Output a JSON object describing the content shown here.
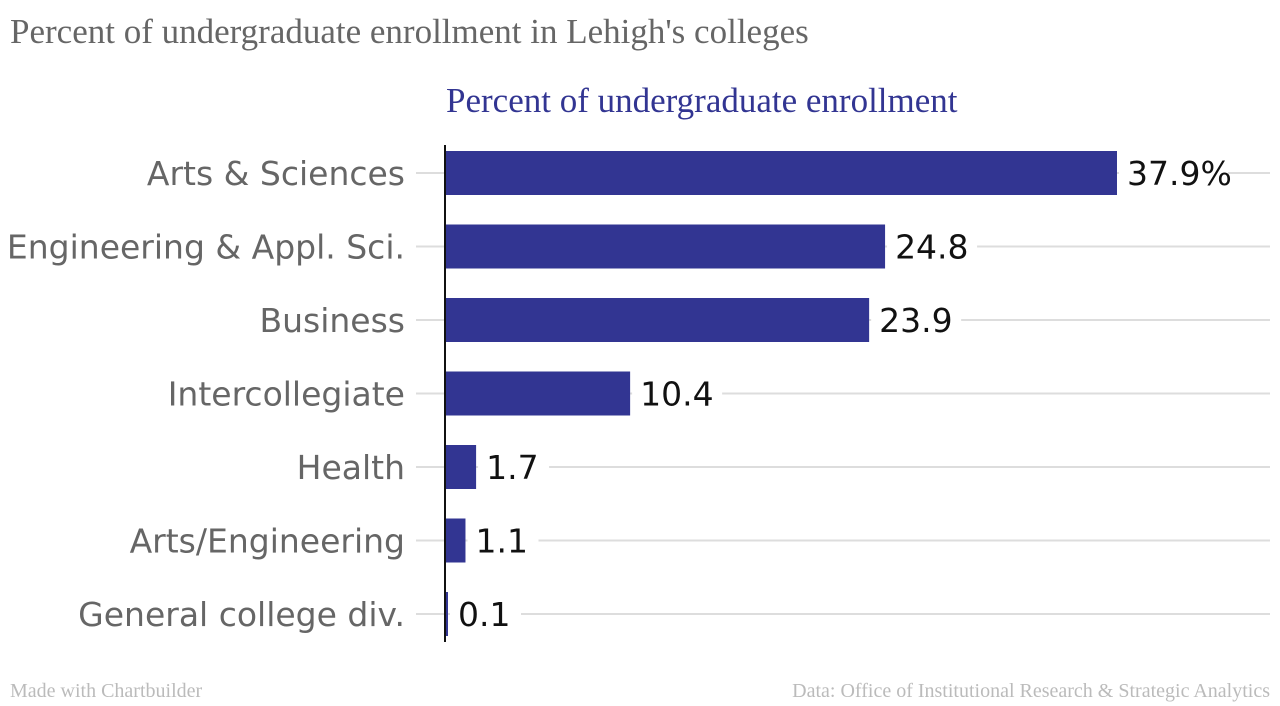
{
  "title": "Percent of undergraduate enrollment in Lehigh's colleges",
  "footer": {
    "credit": "Made with Chartbuilder",
    "source": "Data: Office of Institutional Research & Strategic Analytics"
  },
  "colors": {
    "bar": "#323592",
    "title": "#666666",
    "footer": "#bbbbbb",
    "grid": "#dddddd"
  },
  "chart_data": {
    "type": "bar",
    "orientation": "horizontal",
    "series": [
      {
        "name": "Percent of undergraduate enrollment",
        "values": [
          37.9,
          24.8,
          23.9,
          10.4,
          1.7,
          1.1,
          0.1
        ]
      }
    ],
    "categories": [
      "Arts & Sciences",
      "Engineering & Appl. Sci.",
      "Business",
      "Intercollegiate",
      "Health",
      "Arts/Engineering",
      "General college div."
    ],
    "value_labels": [
      "37.9%",
      "24.8",
      "23.9",
      "10.4",
      "1.7",
      "1.1",
      "0.1"
    ],
    "xlim": [
      0,
      37.9
    ],
    "grid": true,
    "legend": "top"
  }
}
